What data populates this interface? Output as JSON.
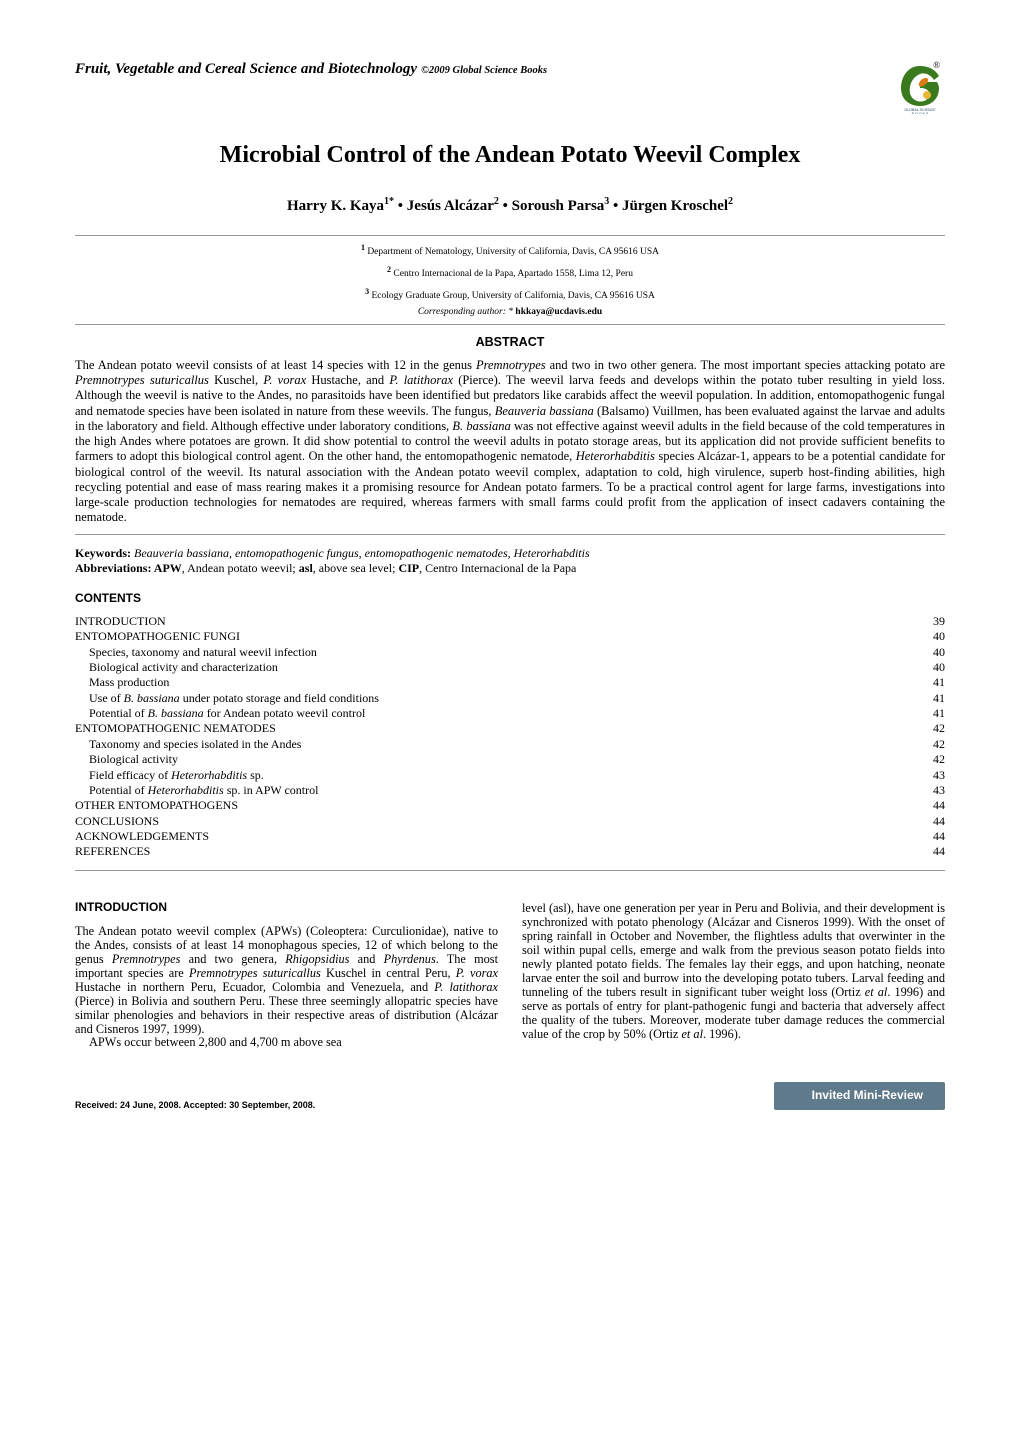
{
  "journal": "Fruit, Vegetable and Cereal Science and Biotechnology",
  "copyright": "©2009 Global Science Books",
  "logo": {
    "bg": "#ffffff",
    "green": "#3a7a1e",
    "orange": "#d97a16",
    "yellow": "#e9b83b",
    "text": "GLOBAL SCIENCE BOOKS",
    "r_mark": "®"
  },
  "title": "Microbial Control of the Andean Potato Weevil Complex",
  "authors_html": "Harry K. Kaya<sup>1*</sup> • Jesús Alcázar<sup>2</sup> • Soroush Parsa<sup>3</sup> • Jürgen Kroschel<sup>2</sup>",
  "affiliations": [
    {
      "num": "1",
      "text": " Department of Nematology, University of California, Davis, CA 95616 USA"
    },
    {
      "num": "2",
      "text": " Centro Internacional de la Papa, Apartado 1558, Lima 12, Peru"
    },
    {
      "num": "3",
      "text": " Ecology Graduate Group, University of California, Davis, CA 95616 USA"
    }
  ],
  "corresponding_label": "Corresponding author",
  "corresponding_sep": ": * ",
  "corresponding_email": "hkkaya@ucdavis.edu",
  "abstract_heading": "ABSTRACT",
  "abstract": "The Andean potato weevil consists of at least 14 species with 12 in the genus Premnotrypes and two in two other genera. The most important species attacking potato are Premnotrypes suturicallus Kuschel, P. vorax Hustache, and P. latithorax (Pierce). The weevil larva feeds and develops within the potato tuber resulting in yield loss. Although the weevil is native to the Andes, no parasitoids have been identified but predators like carabids affect the weevil population. In addition, entomopathogenic fungal and nematode species have been isolated in nature from these weevils. The fungus, Beauveria bassiana (Balsamo) Vuillmen, has been evaluated against the larvae and adults in the laboratory and field. Although effective under laboratory conditions, B. bassiana was not effective against weevil adults in the field because of the cold temperatures in the high Andes where potatoes are grown. It did show potential to control the weevil adults in potato storage areas, but its application did not provide sufficient benefits to farmers to adopt this biological control agent. On the other hand, the entomopathogenic nematode, Heterorhabditis species Alcázar-1, appears to be a potential candidate for biological control of the weevil. Its natural association with the Andean potato weevil complex, adaptation to cold, high virulence, superb host-finding abilities, high recycling potential and ease of mass rearing makes it a promising resource for Andean potato farmers. To be a practical control agent for large farms, investigations into large-scale production technologies for nematodes are required, whereas farmers with small farms could profit from the application of insect cadavers containing the nematode.",
  "keywords_label": "Keywords:",
  "keywords_text": " Beauveria bassiana, entomopathogenic fungus, entomopathogenic nematodes, Heterorhabditis",
  "abbreviations_label": "Abbreviations: APW",
  "abbreviations_text": ", Andean potato weevil; asl, above sea level; CIP, Centro Internacional de la Papa",
  "contents_heading": "CONTENTS",
  "toc": [
    {
      "label": "INTRODUCTION",
      "page": "39",
      "indent": 0
    },
    {
      "label": "ENTOMOPATHOGENIC FUNGI",
      "page": "40",
      "indent": 0
    },
    {
      "label": "Species, taxonomy and natural weevil infection",
      "page": "40",
      "indent": 1
    },
    {
      "label": "Biological activity and characterization",
      "page": "40",
      "indent": 1
    },
    {
      "label": "Mass production",
      "page": "41",
      "indent": 1
    },
    {
      "label_html": "Use of <span class=\"italic\">B. bassiana</span> under potato storage and field conditions",
      "page": "41",
      "indent": 1
    },
    {
      "label_html": "Potential of <span class=\"italic\">B. bassiana</span> for Andean potato weevil control",
      "page": "41",
      "indent": 1
    },
    {
      "label": "ENTOMOPATHOGENIC NEMATODES",
      "page": "42",
      "indent": 0
    },
    {
      "label": "Taxonomy and species isolated in the Andes",
      "page": "42",
      "indent": 1
    },
    {
      "label": "Biological activity",
      "page": "42",
      "indent": 1
    },
    {
      "label_html": "Field efficacy of <span class=\"italic\">Heterorhabditis</span> sp.",
      "page": "43",
      "indent": 1
    },
    {
      "label_html": "Potential of <span class=\"italic\">Heterorhabditis</span> sp. in APW control",
      "page": "43",
      "indent": 1
    },
    {
      "label": "OTHER ENTOMOPATHOGENS",
      "page": "44",
      "indent": 0
    },
    {
      "label": "CONCLUSIONS",
      "page": "44",
      "indent": 0
    },
    {
      "label": "ACKNOWLEDGEMENTS",
      "page": "44",
      "indent": 0
    },
    {
      "label": "REFERENCES",
      "page": "44",
      "indent": 0
    }
  ],
  "intro_heading": "INTRODUCTION",
  "intro_left_p1": "The Andean potato weevil complex (APWs) (Coleoptera: Curculionidae), native to the Andes, consists of at least 14 monophagous species, 12 of which belong to the genus Premnotrypes and two genera, Rhigopsidius and Phyrdenus. The most important species are Premnotrypes suturicallus Kuschel in central Peru, P. vorax Hustache in northern Peru, Ecuador, Colombia and Venezuela, and P. latithorax (Pierce) in Bolivia and southern Peru. These three seemingly allopatric species have similar phenologies and behaviors in their respective areas of distribution (Alcázar and Cisneros 1997, 1999).",
  "intro_left_p2": "APWs occur between 2,800 and 4,700 m above sea",
  "intro_right_p1": "level (asl), have one generation per year in Peru and Bolivia, and their development is synchronized with potato phenology (Alcázar and Cisneros 1999). With the onset of spring rainfall in October and November, the flightless adults that overwinter in the soil within pupal cells, emerge and walk from the previous season potato fields into newly planted potato fields. The females lay their eggs, and upon hatching, neonate larvae enter the soil and burrow into the developing potato tubers. Larval feeding and tunneling of the tubers result in significant tuber weight loss (Ortiz et al. 1996) and serve as portals of entry for plant-pathogenic fungi and bacteria that adversely affect the quality of the tubers. Moreover, moderate tuber damage reduces the commercial value of the crop by 50% (Ortiz et al. 1996).",
  "received": "Received: 24 June, 2008. Accepted: 30 September, 2008.",
  "badge": {
    "text": "Invited Mini-Review",
    "bg": "#5f7a8a"
  }
}
